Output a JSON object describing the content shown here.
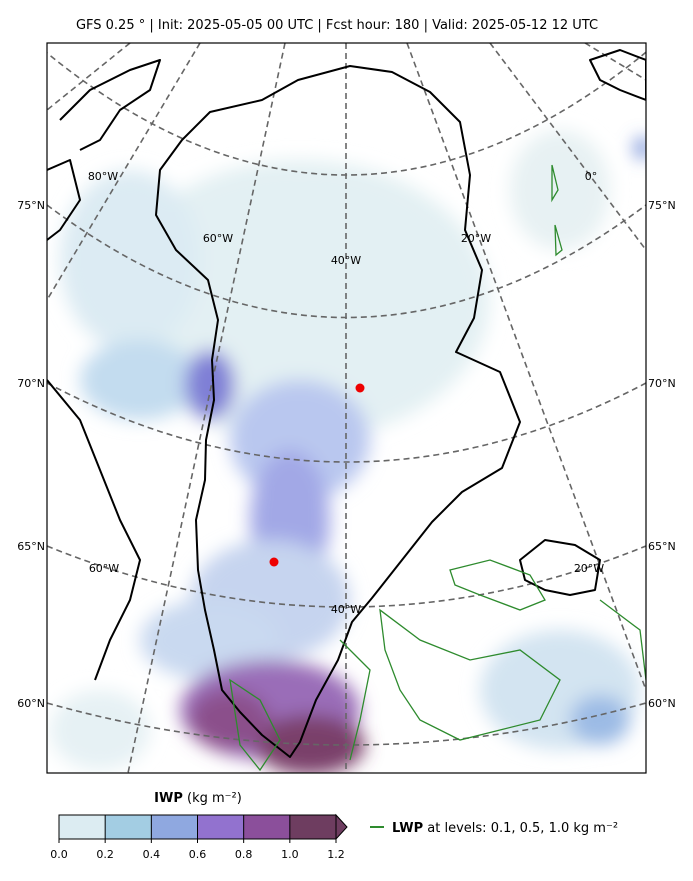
{
  "title": "GFS 0.25 °  |  Init: 2025-05-05 00 UTC  |  Fcst hour: 180  |  Valid: 2025-05-12 12 UTC",
  "lat_labels_left": [
    "75°N",
    "70°N",
    "65°N",
    "60°N"
  ],
  "lat_labels_right": [
    "75°N",
    "70°N",
    "65°N",
    "60°N"
  ],
  "lon_labels": [
    "80°W",
    "60°W",
    "40°W",
    "20°W",
    "0°",
    "60°W",
    "20°W",
    "40°W"
  ],
  "colorbar": {
    "label": "IWP",
    "units": "(kg m⁻²)",
    "clim": [
      0,
      1.2
    ],
    "colors": [
      "#dcecf2",
      "#a3cde3",
      "#8fa8e0",
      "#9272cf",
      "#8b4f9b",
      "#6e3d60"
    ],
    "ticks": [
      {
        "value": 0,
        "label": "0.0"
      },
      {
        "value": 0.2,
        "label": "0.2"
      },
      {
        "value": 0.4,
        "label": "0.4"
      },
      {
        "value": 0.6,
        "label": "0.6"
      },
      {
        "value": 0.8,
        "label": "0.8"
      },
      {
        "value": 1.0,
        "label": "1.0"
      },
      {
        "value": 1.2,
        "label": "1.2"
      }
    ]
  },
  "legend": {
    "name": "LWP",
    "text": "at levels: 0.1, 0.5, 1.0  kg m⁻²",
    "color": "#2e8b2e"
  }
}
